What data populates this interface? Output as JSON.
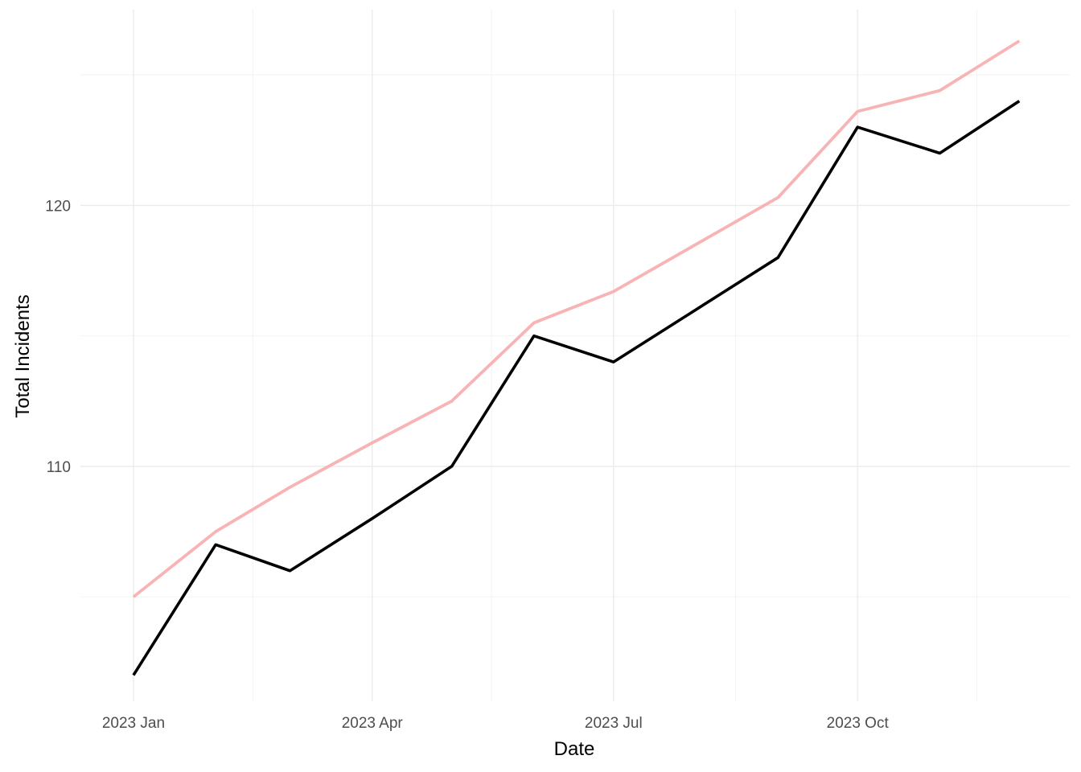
{
  "chart_data": {
    "type": "line",
    "title": "",
    "xlabel": "Date",
    "ylabel": "Total Incidents",
    "x": [
      "2023-01-01",
      "2023-02-01",
      "2023-03-01",
      "2023-04-01",
      "2023-05-01",
      "2023-06-01",
      "2023-07-01",
      "2023-08-01",
      "2023-09-01",
      "2023-10-01",
      "2023-11-01",
      "2023-12-01"
    ],
    "x_ticks": [
      {
        "date": "2023-01-01",
        "label": "2023 Jan"
      },
      {
        "date": "2023-04-01",
        "label": "2023 Apr"
      },
      {
        "date": "2023-07-01",
        "label": "2023 Jul"
      },
      {
        "date": "2023-10-01",
        "label": "2023 Oct"
      }
    ],
    "x_minor_ticks": [
      "2023-02-15",
      "2023-05-16",
      "2023-08-16",
      "2023-11-15"
    ],
    "xlim": [
      "2022-12-12",
      "2023-12-20"
    ],
    "y_ticks": [
      110,
      120
    ],
    "y_minor_ticks": [
      105,
      115,
      125
    ],
    "ylim": [
      101,
      127.5
    ],
    "grid": true,
    "series": [
      {
        "values": [
          102,
          107,
          106,
          108,
          110,
          115,
          114,
          116,
          118,
          123,
          122,
          124
        ],
        "color": "#000000"
      },
      {
        "values": [
          105,
          107.5,
          109.2,
          110.9,
          112.5,
          115.5,
          116.7,
          118.5,
          120.3,
          123.6,
          124.4,
          126.3
        ],
        "color": "#f8b4b4"
      }
    ]
  }
}
